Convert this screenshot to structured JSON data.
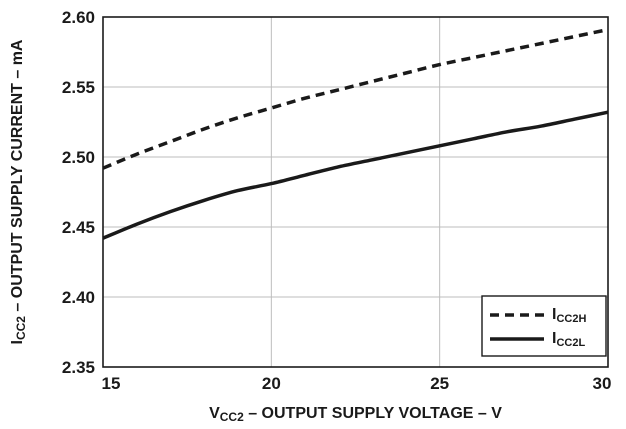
{
  "chart_data": {
    "type": "line",
    "title": "",
    "xlabel": {
      "main": "V",
      "sub": "CC2",
      "rest": " – OUTPUT SUPPLY VOLTAGE – V"
    },
    "ylabel": {
      "main": "I",
      "sub": "CC2",
      "rest": " – OUTPUT SUPPLY CURRENT – mA"
    },
    "xlim": [
      15,
      30
    ],
    "ylim": [
      2.35,
      2.6
    ],
    "xticks": [
      "15",
      "20",
      "25",
      "30"
    ],
    "yticks": [
      "2.35",
      "2.40",
      "2.45",
      "2.50",
      "2.55",
      "2.60"
    ],
    "grid": true,
    "legend_position": "bottom-right",
    "series": [
      {
        "name": "I",
        "name_sub": "CC2H",
        "line_style": "dashed",
        "color": "#1a1a1a",
        "x": [
          15,
          16,
          17,
          18,
          19,
          20,
          21,
          22,
          23,
          24,
          25,
          26,
          27,
          28,
          29,
          30
        ],
        "y": [
          2.492,
          2.502,
          2.511,
          2.52,
          2.528,
          2.535,
          2.542,
          2.548,
          2.554,
          2.56,
          2.566,
          2.571,
          2.576,
          2.581,
          2.586,
          2.591
        ]
      },
      {
        "name": "I",
        "name_sub": "CC2L",
        "line_style": "solid",
        "color": "#1a1a1a",
        "x": [
          15,
          16,
          17,
          18,
          19,
          20,
          21,
          22,
          23,
          24,
          25,
          26,
          27,
          28,
          29,
          30
        ],
        "y": [
          2.442,
          2.452,
          2.461,
          2.469,
          2.476,
          2.481,
          2.487,
          2.493,
          2.498,
          2.503,
          2.508,
          2.513,
          2.518,
          2.522,
          2.527,
          2.532
        ]
      }
    ]
  }
}
